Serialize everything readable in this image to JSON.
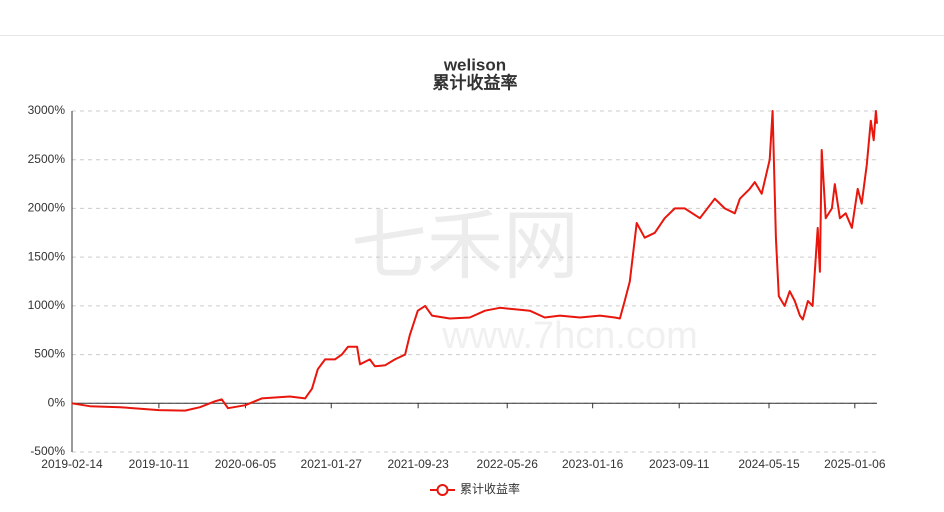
{
  "chart_data": {
    "type": "line",
    "title": "welison",
    "subtitle": "累计收益率",
    "watermark": {
      "text": "七禾网",
      "url": "www.7hcn.com"
    },
    "x": [
      "2019-02-14",
      "2019-04-04",
      "2019-06-26",
      "2019-10-11",
      "2019-12-22",
      "2020-02-01",
      "2020-03-13",
      "2020-04-01",
      "2020-04-18",
      "2020-06-05",
      "2020-07-20",
      "2020-10-05",
      "2020-11-16",
      "2020-12-05",
      "2020-12-21",
      "2021-01-10",
      "2021-02-06",
      "2021-02-25",
      "2021-03-14",
      "2021-04-08",
      "2021-04-16",
      "2021-05-13",
      "2021-05-27",
      "2021-06-24",
      "2021-07-21",
      "2021-08-18",
      "2021-08-31",
      "2021-09-22",
      "2021-10-12",
      "2021-10-31",
      "2021-12-19",
      "2022-02-12",
      "2022-03-26",
      "2022-05-06",
      "2022-06-30",
      "2022-07-27",
      "2022-09-06",
      "2022-10-18",
      "2022-12-12",
      "2023-02-05",
      "2023-03-18",
      "2023-04-01",
      "2023-04-14",
      "2023-04-28",
      "2023-05-17",
      "2023-06-08",
      "2023-07-06",
      "2023-08-02",
      "2023-08-30",
      "2023-09-26",
      "2023-11-07",
      "2023-12-18",
      "2024-01-14",
      "2024-02-11",
      "2024-02-25",
      "2024-03-23",
      "2024-04-06",
      "2024-04-25",
      "2024-05-17",
      "2024-05-25",
      "2024-06-03",
      "2024-06-11",
      "2024-06-27",
      "2024-07-11",
      "2024-07-25",
      "2024-08-08",
      "2024-08-16",
      "2024-08-30",
      "2024-09-12",
      "2024-09-26",
      "2024-10-02",
      "2024-10-07",
      "2024-10-18",
      "2024-11-04",
      "2024-11-12",
      "2024-11-26",
      "2024-12-12",
      "2024-12-29",
      "2025-01-14",
      "2025-01-25",
      "2025-02-08",
      "2025-02-19",
      "2025-02-27",
      "2025-03-05",
      "2025-03-08"
    ],
    "series": [
      {
        "name": "累计收益率",
        "color": "#e8160c",
        "values": [
          0,
          -30,
          -40,
          -70,
          -75,
          -40,
          20,
          40,
          -50,
          -20,
          50,
          70,
          50,
          150,
          350,
          450,
          450,
          500,
          580,
          580,
          400,
          450,
          380,
          390,
          450,
          500,
          700,
          950,
          1000,
          900,
          870,
          880,
          950,
          980,
          960,
          950,
          880,
          900,
          880,
          900,
          880,
          870,
          1050,
          1250,
          1850,
          1700,
          1750,
          1900,
          2000,
          2000,
          1900,
          2100,
          2000,
          1950,
          2100,
          2200,
          2270,
          2150,
          2500,
          3000,
          1700,
          1100,
          1000,
          1150,
          1050,
          900,
          860,
          1050,
          1000,
          1800,
          1350,
          2600,
          1900,
          2000,
          2250,
          1900,
          1950,
          1800,
          2200,
          2050,
          2450,
          2900,
          2700,
          3000,
          2870
        ]
      }
    ],
    "xlim": [
      "2019-02-14",
      "2025-03-08"
    ],
    "xticks": [
      "2019-02-14",
      "2019-10-11",
      "2020-06-05",
      "2021-01-27",
      "2021-09-23",
      "2022-05-26",
      "2023-01-16",
      "2023-09-11",
      "2024-05-15",
      "2025-01-06"
    ],
    "ylim": [
      -500,
      3000
    ],
    "yticks": [
      {
        "value": -500,
        "label": "-500%"
      },
      {
        "value": 0,
        "label": "0%"
      },
      {
        "value": 500,
        "label": "500%"
      },
      {
        "value": 1000,
        "label": "1000%"
      },
      {
        "value": 1500,
        "label": "1500%"
      },
      {
        "value": 2000,
        "label": "2000%"
      },
      {
        "value": 2500,
        "label": "2500%"
      },
      {
        "value": 3000,
        "label": "3000%"
      }
    ],
    "grid": true,
    "legend": "bottom"
  }
}
